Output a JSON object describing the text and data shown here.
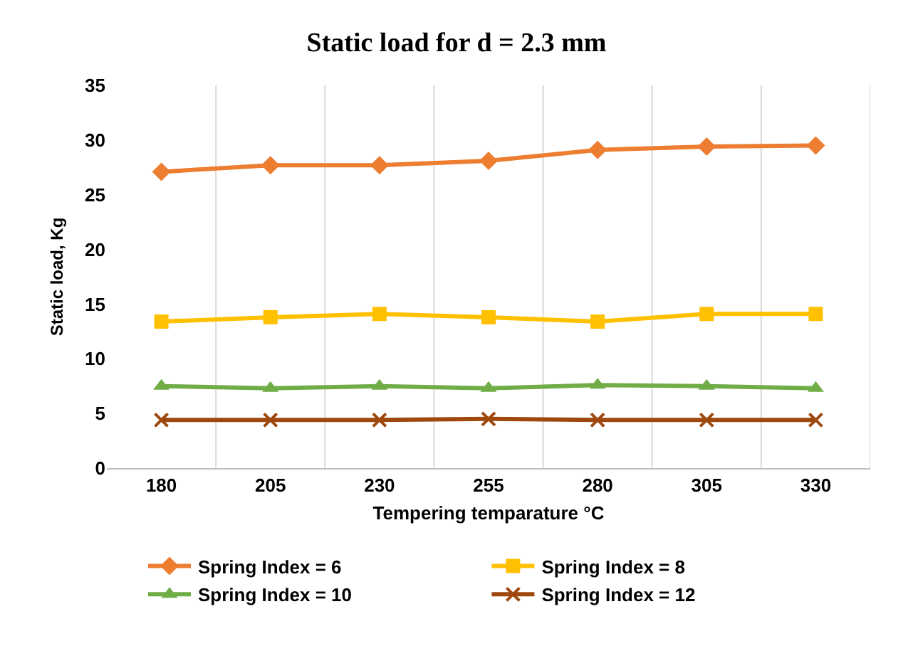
{
  "chart_data": {
    "type": "line",
    "title": "Static load for d = 2.3 mm",
    "xlabel": "Tempering temparature °C",
    "ylabel": "Static load, Kg",
    "categories": [
      "180",
      "205",
      "230",
      "255",
      "280",
      "305",
      "330"
    ],
    "ylim": [
      0,
      35
    ],
    "yticks": [
      0,
      5,
      10,
      15,
      20,
      25,
      30,
      35
    ],
    "grid": "x",
    "legend": "bottom",
    "series": [
      {
        "name": "Spring Index = 6",
        "color": "#ed7d31",
        "marker": "diamond",
        "values": [
          27.1,
          27.7,
          27.7,
          28.1,
          29.1,
          29.4,
          29.5
        ]
      },
      {
        "name": "Spring Index = 8",
        "color": "#ffc000",
        "marker": "square",
        "values": [
          13.4,
          13.8,
          14.1,
          13.8,
          13.4,
          14.1,
          14.1
        ]
      },
      {
        "name": "Spring Index = 10",
        "color": "#70ad47",
        "marker": "triangle",
        "values": [
          7.5,
          7.3,
          7.5,
          7.3,
          7.6,
          7.5,
          7.3
        ]
      },
      {
        "name": "Spring Index = 12",
        "color": "#9e480e",
        "marker": "cross",
        "values": [
          4.4,
          4.4,
          4.4,
          4.5,
          4.4,
          4.4,
          4.4
        ]
      }
    ]
  }
}
